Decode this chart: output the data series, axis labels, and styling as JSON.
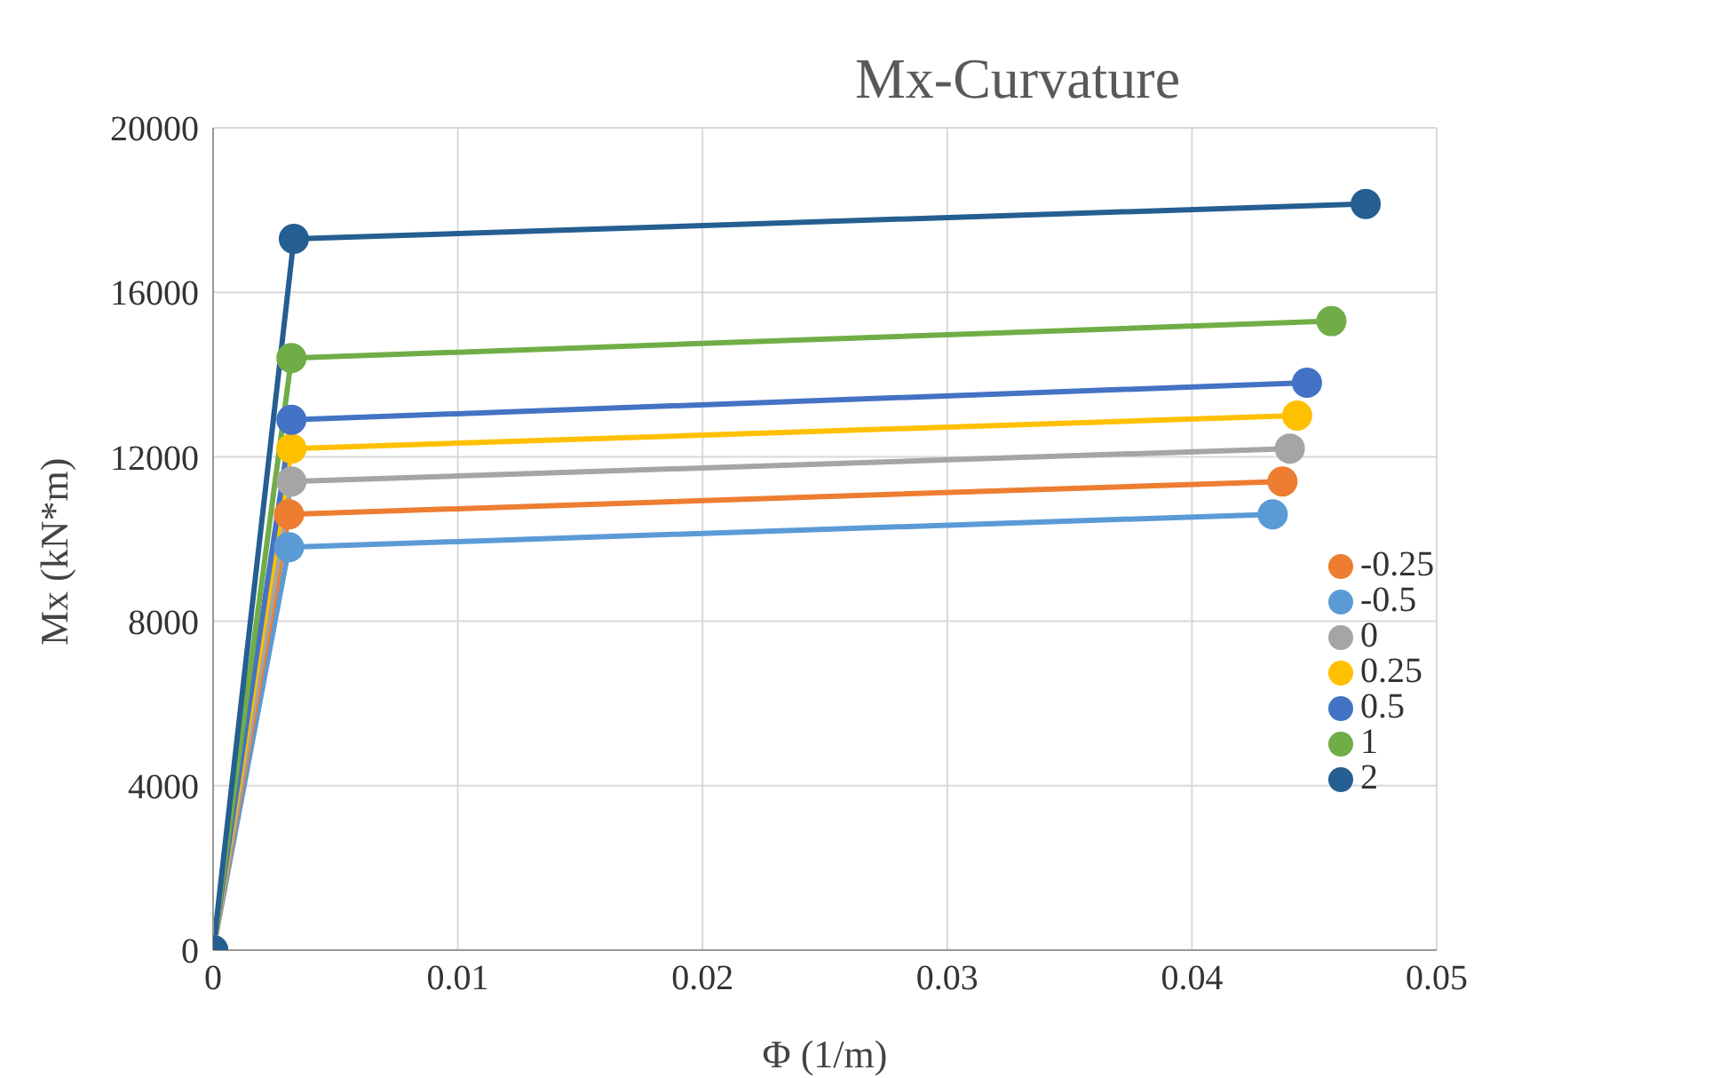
{
  "chart_data": {
    "type": "line",
    "title": "Mx-Curvature",
    "xlabel": "Φ (1/m)",
    "ylabel": "Mx (kN*m)",
    "xlim": [
      0,
      0.05
    ],
    "xticks": [
      0,
      0.01,
      0.02,
      0.03,
      0.04,
      0.05
    ],
    "ylim": [
      0,
      20000
    ],
    "yticks": [
      0,
      4000,
      8000,
      12000,
      16000,
      20000
    ],
    "grid": true,
    "legend": "right",
    "marker": "circle",
    "line_style": "solid",
    "series": [
      {
        "name": "-0.5",
        "color": "#5b9bd5",
        "x": [
          0,
          0.0031,
          0.0433
        ],
        "values": [
          0,
          9800,
          10600
        ]
      },
      {
        "name": "-0.25",
        "color": "#ed7d31",
        "x": [
          0,
          0.0031,
          0.0437
        ],
        "values": [
          0,
          10600,
          11400
        ]
      },
      {
        "name": "0",
        "color": "#a5a5a5",
        "x": [
          0,
          0.0032,
          0.044
        ],
        "values": [
          0,
          11400,
          12200
        ]
      },
      {
        "name": "0.25",
        "color": "#ffc000",
        "x": [
          0,
          0.0032,
          0.0443
        ],
        "values": [
          0,
          12200,
          13000
        ]
      },
      {
        "name": "0.5",
        "color": "#4472c4",
        "x": [
          0,
          0.0032,
          0.0447
        ],
        "values": [
          0,
          12900,
          13800
        ]
      },
      {
        "name": "1",
        "color": "#70ad47",
        "x": [
          0,
          0.0032,
          0.0457
        ],
        "values": [
          0,
          14400,
          15300
        ]
      },
      {
        "name": "2",
        "color": "#255e91",
        "x": [
          0,
          0.0033,
          0.0471
        ],
        "values": [
          0,
          17300,
          18150
        ]
      }
    ]
  }
}
